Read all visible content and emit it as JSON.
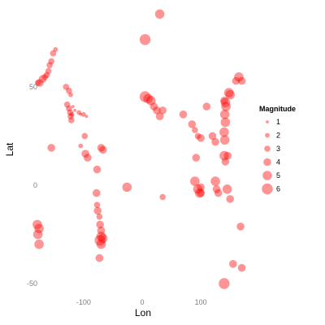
{
  "chart_data": {
    "type": "scatter",
    "xlabel": "Lon",
    "ylabel": "Lat",
    "xlim": [
      -190,
      190
    ],
    "ylim": [
      -57,
      90
    ],
    "x_ticks": [
      -100,
      0,
      100
    ],
    "y_ticks": [
      -50,
      0,
      50
    ],
    "x_tick_labels": [
      "-100",
      "0",
      "100"
    ],
    "y_tick_labels": [
      "-50",
      "0",
      "50"
    ],
    "grid": false,
    "point_color": "#ff0000",
    "legend": {
      "title": "Magnitude",
      "position": "right",
      "entries": [
        {
          "label": "1",
          "value": 1
        },
        {
          "label": "2",
          "value": 2
        },
        {
          "label": "3",
          "value": 3
        },
        {
          "label": "4",
          "value": 4
        },
        {
          "label": "5",
          "value": 5
        },
        {
          "label": "6",
          "value": 6
        }
      ]
    },
    "points": [
      {
        "x": 30,
        "y": 87,
        "mag": 5
      },
      {
        "x": 5,
        "y": 74,
        "mag": 6
      },
      {
        "x": -148,
        "y": 69,
        "mag": 2
      },
      {
        "x": -152,
        "y": 67,
        "mag": 3
      },
      {
        "x": -155,
        "y": 63,
        "mag": 3
      },
      {
        "x": -158,
        "y": 61,
        "mag": 3
      },
      {
        "x": -160,
        "y": 58,
        "mag": 3
      },
      {
        "x": -163,
        "y": 56,
        "mag": 3
      },
      {
        "x": -166,
        "y": 55,
        "mag": 3
      },
      {
        "x": -170,
        "y": 54,
        "mag": 4
      },
      {
        "x": -175,
        "y": 52,
        "mag": 4
      },
      {
        "x": -178,
        "y": 52,
        "mag": 3
      },
      {
        "x": -130,
        "y": 50,
        "mag": 3
      },
      {
        "x": -125,
        "y": 48,
        "mag": 3
      },
      {
        "x": -122,
        "y": 46,
        "mag": 2
      },
      {
        "x": -128,
        "y": 41,
        "mag": 3
      },
      {
        "x": -125,
        "y": 39,
        "mag": 3
      },
      {
        "x": -123,
        "y": 37,
        "mag": 3
      },
      {
        "x": -122,
        "y": 35,
        "mag": 3
      },
      {
        "x": -121,
        "y": 33,
        "mag": 3
      },
      {
        "x": -120,
        "y": 36,
        "mag": 2
      },
      {
        "x": -118,
        "y": 40,
        "mag": 1
      },
      {
        "x": -115,
        "y": 38,
        "mag": 1
      },
      {
        "x": -108,
        "y": 37,
        "mag": 2
      },
      {
        "x": -105,
        "y": 36,
        "mag": 1
      },
      {
        "x": -100,
        "y": 36,
        "mag": 2
      },
      {
        "x": -95,
        "y": 35,
        "mag": 1
      },
      {
        "x": -98,
        "y": 25,
        "mag": 3
      },
      {
        "x": -105,
        "y": 20,
        "mag": 2
      },
      {
        "x": -155,
        "y": 19,
        "mag": 4
      },
      {
        "x": -97,
        "y": 16,
        "mag": 4
      },
      {
        "x": -93,
        "y": 14,
        "mag": 4
      },
      {
        "x": -70,
        "y": 19,
        "mag": 4
      },
      {
        "x": -67,
        "y": 18,
        "mag": 4
      },
      {
        "x": -77,
        "y": 8,
        "mag": 4
      },
      {
        "x": -78,
        "y": -4,
        "mag": 4
      },
      {
        "x": -77,
        "y": -10,
        "mag": 3
      },
      {
        "x": -76,
        "y": -13,
        "mag": 4
      },
      {
        "x": -73,
        "y": -16,
        "mag": 3
      },
      {
        "x": -72,
        "y": -20,
        "mag": 4
      },
      {
        "x": -70,
        "y": -23,
        "mag": 4
      },
      {
        "x": -70,
        "y": -26,
        "mag": 5
      },
      {
        "x": -67,
        "y": -27,
        "mag": 5
      },
      {
        "x": -72,
        "y": -28,
        "mag": 6
      },
      {
        "x": -70,
        "y": -30,
        "mag": 5
      },
      {
        "x": -73,
        "y": -37,
        "mag": 4
      },
      {
        "x": -26,
        "y": -1,
        "mag": 5
      },
      {
        "x": -179,
        "y": -20,
        "mag": 5
      },
      {
        "x": -176,
        "y": -22,
        "mag": 5
      },
      {
        "x": -178,
        "y": -25,
        "mag": 5
      },
      {
        "x": -176,
        "y": -30,
        "mag": 5
      },
      {
        "x": 5,
        "y": 45,
        "mag": 6
      },
      {
        "x": 10,
        "y": 44,
        "mag": 5
      },
      {
        "x": 15,
        "y": 43,
        "mag": 5
      },
      {
        "x": 20,
        "y": 40,
        "mag": 4
      },
      {
        "x": 25,
        "y": 38,
        "mag": 4
      },
      {
        "x": 35,
        "y": 38,
        "mag": 4
      },
      {
        "x": 30,
        "y": 35,
        "mag": 4
      },
      {
        "x": 35,
        "y": -6,
        "mag": 3
      },
      {
        "x": 70,
        "y": 36,
        "mag": 4
      },
      {
        "x": 85,
        "y": 31,
        "mag": 4
      },
      {
        "x": 90,
        "y": 28,
        "mag": 3
      },
      {
        "x": 95,
        "y": 25,
        "mag": 3
      },
      {
        "x": 100,
        "y": 24,
        "mag": 4
      },
      {
        "x": 92,
        "y": 14,
        "mag": 4
      },
      {
        "x": 90,
        "y": 2,
        "mag": 5
      },
      {
        "x": 95,
        "y": -2,
        "mag": 5
      },
      {
        "x": 98,
        "y": -4,
        "mag": 5
      },
      {
        "x": 100,
        "y": -1,
        "mag": 4
      },
      {
        "x": 100,
        "y": -4,
        "mag": 4
      },
      {
        "x": 110,
        "y": 40,
        "mag": 4
      },
      {
        "x": 120,
        "y": 25,
        "mag": 4
      },
      {
        "x": 125,
        "y": 22,
        "mag": 4
      },
      {
        "x": 125,
        "y": 2,
        "mag": 5
      },
      {
        "x": 127,
        "y": -2,
        "mag": 4
      },
      {
        "x": 130,
        "y": -4,
        "mag": 4
      },
      {
        "x": 140,
        "y": 43,
        "mag": 4
      },
      {
        "x": 142,
        "y": 42,
        "mag": 5
      },
      {
        "x": 143,
        "y": 40,
        "mag": 5
      },
      {
        "x": 141,
        "y": 36,
        "mag": 5
      },
      {
        "x": 142,
        "y": 32,
        "mag": 5
      },
      {
        "x": 140,
        "y": 27,
        "mag": 5
      },
      {
        "x": 141,
        "y": 23,
        "mag": 5
      },
      {
        "x": 140,
        "y": 15,
        "mag": 5
      },
      {
        "x": 146,
        "y": 15,
        "mag": 4
      },
      {
        "x": 142,
        "y": 12,
        "mag": 4
      },
      {
        "x": 145,
        "y": -2,
        "mag": 5
      },
      {
        "x": 148,
        "y": 47,
        "mag": 5
      },
      {
        "x": 150,
        "y": 46,
        "mag": 5
      },
      {
        "x": 160,
        "y": 53,
        "mag": 4
      },
      {
        "x": 165,
        "y": 55,
        "mag": 5
      },
      {
        "x": 170,
        "y": 53,
        "mag": 4
      },
      {
        "x": 150,
        "y": -7,
        "mag": 4
      },
      {
        "x": 168,
        "y": -21,
        "mag": 4
      },
      {
        "x": 155,
        "y": -40,
        "mag": 4
      },
      {
        "x": 170,
        "y": -42,
        "mag": 4
      },
      {
        "x": 140,
        "y": -50,
        "mag": 6
      }
    ]
  }
}
